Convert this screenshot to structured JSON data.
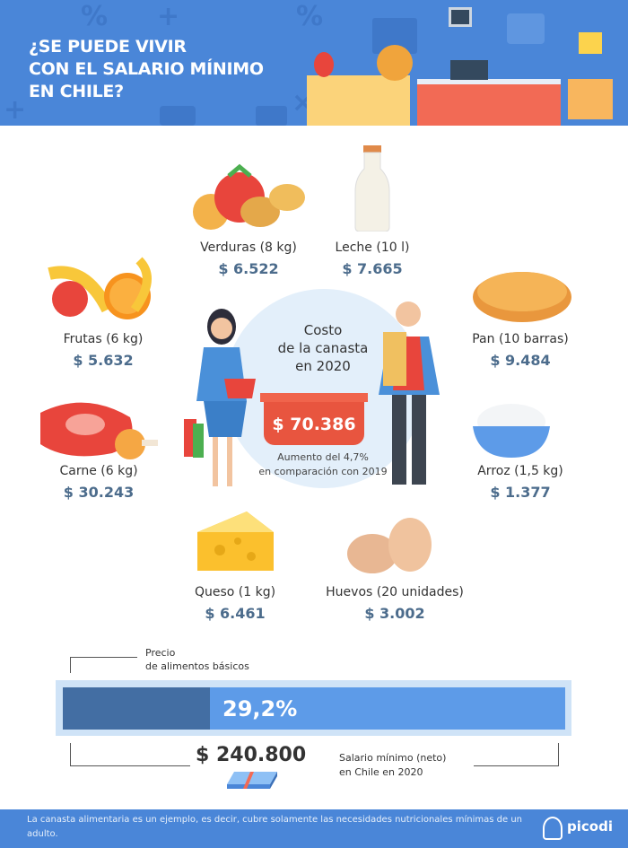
{
  "header": {
    "title_lines": [
      "¿SE PUEDE VIVIR",
      "CON EL SALARIO MÍNIMO",
      "EN CHILE?"
    ]
  },
  "items": [
    {
      "label": "Verduras (8 kg)",
      "price": "$ 6.522",
      "icon": "vegetables-icon"
    },
    {
      "label": "Leche (10 l)",
      "price": "$ 7.665",
      "icon": "milk-bottle-icon"
    },
    {
      "label": "Frutas (6 kg)",
      "price": "$ 5.632",
      "icon": "fruits-icon"
    },
    {
      "label": "Pan (10 barras)",
      "price": "$ 9.484",
      "icon": "bread-icon"
    },
    {
      "label": "Carne (6 kg)",
      "price": "$ 30.243",
      "icon": "meat-icon"
    },
    {
      "label": "Arroz (1,5 kg)",
      "price": "$ 1.377",
      "icon": "rice-bowl-icon"
    },
    {
      "label": "Queso (1 kg)",
      "price": "$ 6.461",
      "icon": "cheese-icon"
    },
    {
      "label": "Huevos (20 unidades)",
      "price": "$ 3.002",
      "icon": "eggs-icon"
    }
  ],
  "center": {
    "title_lines": [
      "Costo",
      "de la canasta",
      "en 2020"
    ],
    "total": "$ 70.386",
    "note_lines": [
      "Aumento del 4,7%",
      "en comparación con 2019"
    ]
  },
  "bar": {
    "label_lines": [
      "Precio",
      "de alimentos básicos"
    ],
    "percent_text": "29,2%",
    "percent": 29.2,
    "salary": "$ 240.800",
    "salary_label_lines": [
      "Salario mínimo (neto)",
      "en Chile en 2020"
    ]
  },
  "footer": {
    "text": "La canasta alimentaria es un ejemplo, es decir, cubre solamente las necesidades nutricionales mínimas de un adulto.",
    "logo": "picodi"
  },
  "colors": {
    "header": "#4a86d8",
    "bar_fill": "#436ea3",
    "bar_rest": "#5d9be8",
    "basket": "#e8553f",
    "price": "#4c6c8c"
  }
}
